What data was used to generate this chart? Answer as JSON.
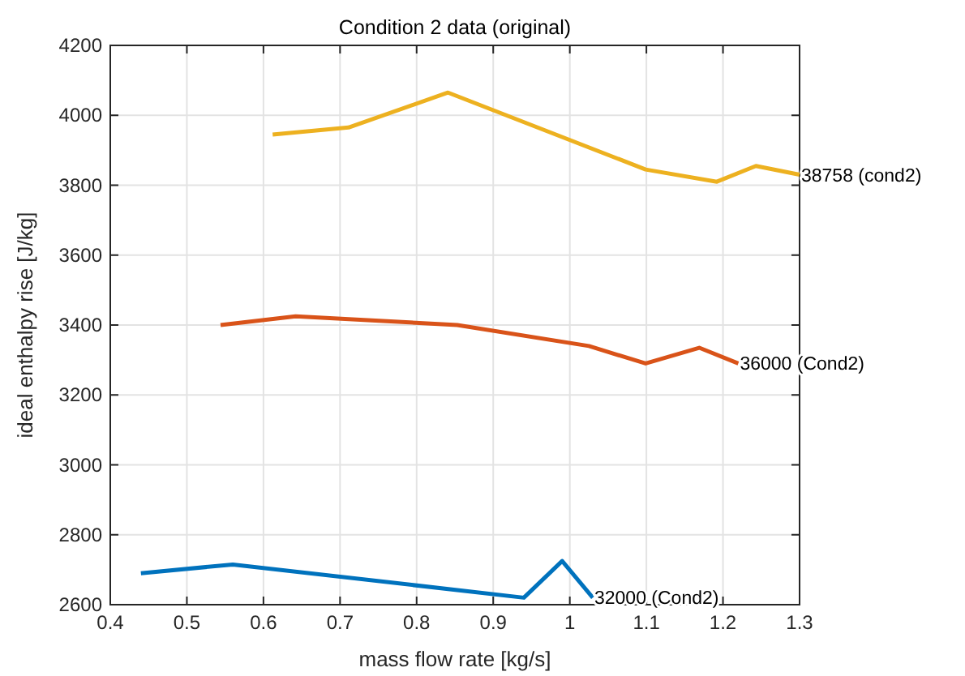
{
  "chart_data": {
    "type": "line",
    "title": "Condition 2 data (original)",
    "xlabel": "mass flow rate [kg/s]",
    "ylabel": "ideal enthalpy rise [J/kg]",
    "xlim": [
      0.4,
      1.3
    ],
    "xticks": [
      0.4,
      0.5,
      0.6,
      0.7,
      0.8,
      0.9,
      1,
      1.1,
      1.2,
      1.3
    ],
    "ylim": [
      2600,
      4200
    ],
    "yticks": [
      2600,
      2800,
      3000,
      3200,
      3400,
      3600,
      3800,
      4000,
      4200
    ],
    "grid": true,
    "series": [
      {
        "name": "32000 (Cond2)",
        "color": "#0072bd",
        "x": [
          0.44,
          0.56,
          0.94,
          0.99,
          1.03
        ],
        "values": [
          2690,
          2715,
          2620,
          2725,
          2620
        ]
      },
      {
        "name": "36000 (Cond2)",
        "color": "#d95319",
        "x": [
          0.544,
          0.642,
          0.853,
          1.025,
          1.099,
          1.169,
          1.22
        ],
        "values": [
          3400,
          3425,
          3400,
          3340,
          3290,
          3335,
          3290
        ]
      },
      {
        "name": "38758  (cond2)",
        "color": "#edb120",
        "x": [
          0.612,
          0.711,
          0.841,
          1.099,
          1.192,
          1.243,
          1.3
        ],
        "values": [
          3945,
          3965,
          4065,
          3845,
          3810,
          3855,
          3830
        ]
      }
    ]
  }
}
